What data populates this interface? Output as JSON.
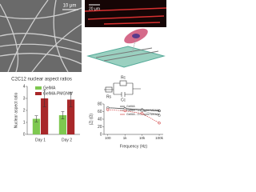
{
  "images": {
    "sem_scale": "10 μm",
    "fluor_scale": "20 μm"
  },
  "circuit": {
    "rc": "Rc",
    "cc": "Cc",
    "rs": "Rs"
  },
  "chart_data": [
    {
      "type": "bar",
      "title": "C2C12 nuclear aspect ratios",
      "y_label": "Nuclear aspect ratio",
      "categories": [
        "Day 1",
        "Day 2"
      ],
      "series": [
        {
          "name": "GelMA",
          "color": "#7ec850",
          "values": [
            1.3,
            1.6
          ],
          "errors": [
            0.25,
            0.3
          ]
        },
        {
          "name": "GelMA-PMGNW",
          "color": "#a8282a",
          "values": [
            3.0,
            2.9
          ],
          "errors": [
            0.7,
            0.6
          ]
        }
      ],
      "ylim": [
        0,
        4
      ],
      "yticks": [
        0,
        1,
        2,
        3,
        4
      ]
    },
    {
      "type": "line",
      "x_label": "Frequency (Hz)",
      "y_label": "|Z| (Ω)",
      "xlog": true,
      "x": [
        100,
        1000,
        10000,
        100000
      ],
      "series": [
        {
          "name": "GelMA",
          "color": "#222222",
          "values": [
            70,
            68,
            65,
            62
          ]
        },
        {
          "name": "GelMA - 1.0 mg/ml MGNW",
          "color": "#888888",
          "values": [
            70,
            67,
            62,
            50
          ]
        },
        {
          "name": "GelMA - 2.0 mg/ml MGNW",
          "color": "#d04040",
          "values": [
            65,
            62,
            55,
            30
          ]
        }
      ],
      "xlim": [
        60,
        170000
      ],
      "xticks": [
        100,
        {
          "value": 1000,
          "label": "1k"
        },
        {
          "value": 10000,
          "label": "10k"
        },
        {
          "value": 100000,
          "label": "100k"
        }
      ],
      "ylim": [
        0,
        80
      ],
      "yticks": [
        0,
        20,
        40,
        60,
        80
      ]
    }
  ]
}
